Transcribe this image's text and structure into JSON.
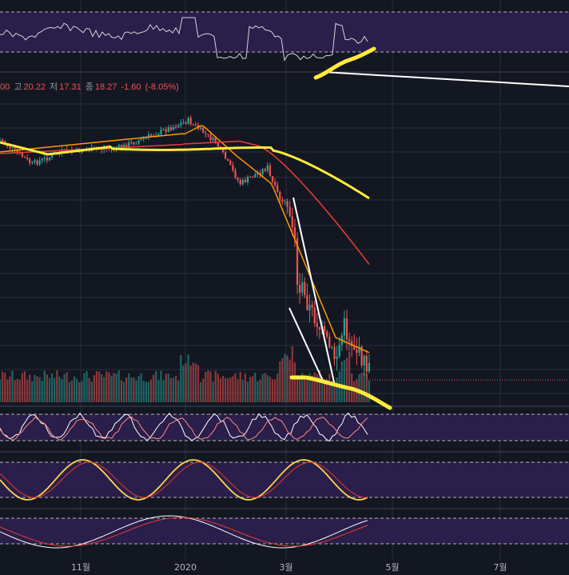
{
  "ohlc_bar": {
    "open_tail": "00",
    "high_label": "고",
    "high": "20.22",
    "low_label": "저",
    "low": "17.31",
    "close_label": "종",
    "close": "18.27",
    "change": "-1.60",
    "change_pct": "(-8.05%)"
  },
  "colors": {
    "background": "#131722",
    "up": "#26a69a",
    "down": "#ef5350",
    "band": "#2a1e4a",
    "ma_orange": "#ff9800",
    "ma_red": "#e53935",
    "ma_yellow": "#ffeb3b",
    "drawing_white": "#ffffff"
  },
  "chart_data": {
    "type": "line",
    "x_tick_labels": [
      "11월",
      "2020",
      "3월",
      "5월",
      "7월"
    ],
    "price": {
      "last": 18.27,
      "high": 20.22,
      "low": 17.31,
      "change": -1.6,
      "change_pct": -8.05
    },
    "panels": [
      "RSI",
      "price-volume",
      "stochastic",
      "stochastic-rsi",
      "macd"
    ],
    "grid": true,
    "legend": "none"
  }
}
